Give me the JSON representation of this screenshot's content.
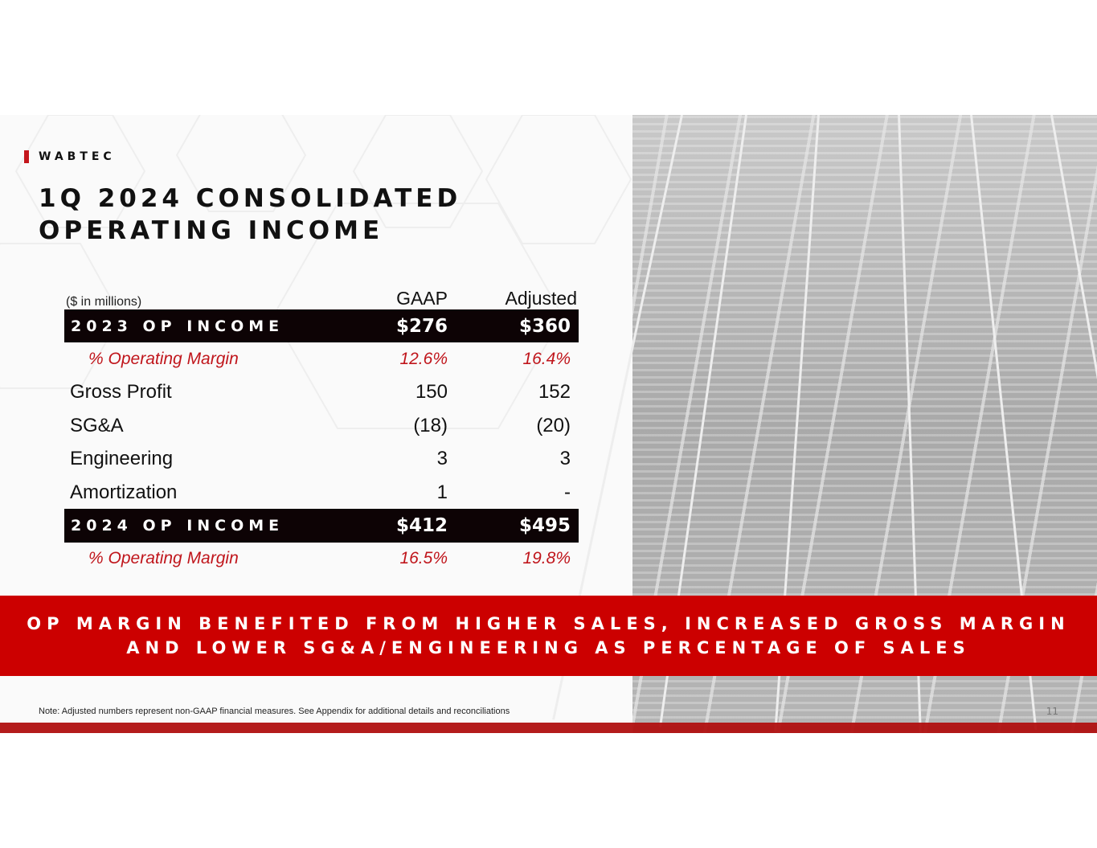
{
  "brand": "WABTEC",
  "title_lines": [
    "1Q 2024 CONSOLIDATED",
    "OPERATING INCOME"
  ],
  "table": {
    "units": "($ in millions)",
    "columns": [
      "GAAP",
      "Adjusted"
    ],
    "rows": [
      {
        "label": "2023 OP INCOME",
        "gaap": "$276",
        "adjusted": "$360",
        "style": "black"
      },
      {
        "label": "% Operating Margin",
        "gaap": "12.6%",
        "adjusted": "16.4%",
        "style": "margin"
      },
      {
        "label": "Gross Profit",
        "gaap": "150",
        "adjusted": "152",
        "style": "plain"
      },
      {
        "label": "SG&A",
        "gaap": "(18)",
        "adjusted": "(20)",
        "style": "plain"
      },
      {
        "label": "Engineering",
        "gaap": "3",
        "adjusted": "3",
        "style": "plain"
      },
      {
        "label": "Amortization",
        "gaap": "1",
        "adjusted": "-",
        "style": "plain"
      },
      {
        "label": "2024 OP INCOME",
        "gaap": "$412",
        "adjusted": "$495",
        "style": "black"
      },
      {
        "label": "% Operating Margin",
        "gaap": "16.5%",
        "adjusted": "19.8%",
        "style": "margin"
      }
    ]
  },
  "banner_lines": [
    "OP MARGIN BENEFITED FROM HIGHER SALES, INCREASED GROSS MARGIN",
    "AND LOWER SG&A/ENGINEERING AS PERCENTAGE OF SALES"
  ],
  "note": "Note:  Adjusted numbers represent non-GAAP financial measures.  See Appendix for additional details and reconciliations",
  "page_number": "11",
  "colors": {
    "accent": "#c00000",
    "dark": "#0d0305"
  }
}
